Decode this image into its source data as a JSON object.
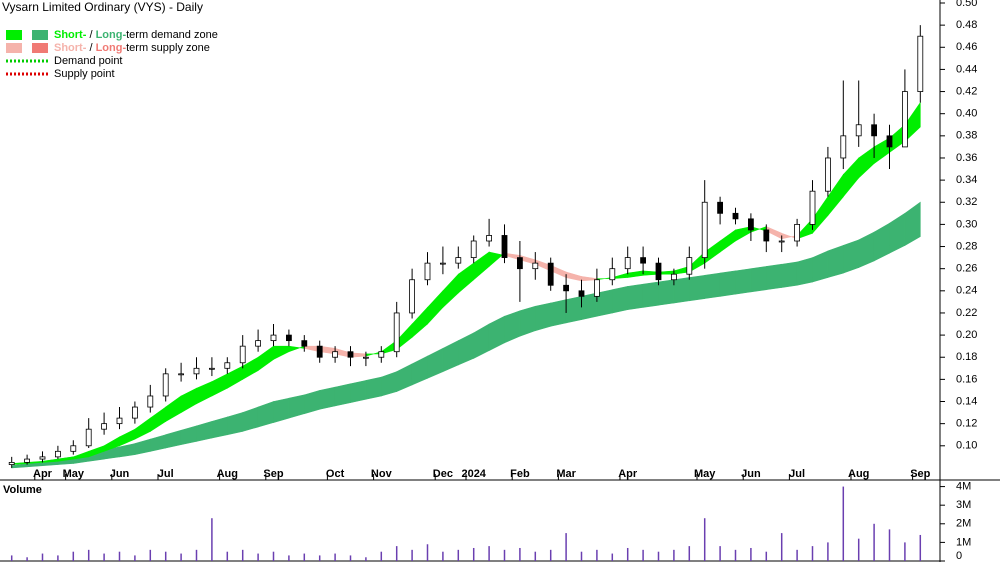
{
  "chart_data": {
    "type": "ohlc",
    "title": "Vysarn Limited Ordinary (VYS) - Daily",
    "legend": [
      {
        "parts": [
          "Short-",
          " / ",
          "Long-",
          "term demand zone"
        ]
      },
      {
        "parts": [
          "Short-",
          " / ",
          "Long-",
          "term supply zone"
        ]
      },
      {
        "name": "Demand point"
      },
      {
        "name": "Supply point"
      }
    ],
    "colors": {
      "short_demand": "#00ee00",
      "long_demand": "#3cb371",
      "short_supply": "#f5b3ab",
      "long_supply": "#f07a74",
      "demand_point": "#00cc00",
      "supply_point": "#dd0000",
      "volume": "#6a3fb0",
      "volume_label": "#5a2a90"
    },
    "categories": [
      null,
      null,
      "Apr",
      null,
      "May",
      null,
      null,
      "Jun",
      null,
      null,
      "Jul",
      null,
      null,
      null,
      "Aug",
      null,
      null,
      "Sep",
      null,
      null,
      null,
      "Oct",
      null,
      null,
      "Nov",
      null,
      null,
      null,
      "Dec",
      null,
      "2024",
      null,
      null,
      "Feb",
      null,
      null,
      "Mar",
      null,
      null,
      null,
      "Apr",
      null,
      null,
      null,
      null,
      "May",
      null,
      null,
      "Jun",
      null,
      null,
      "Jul",
      null,
      null,
      null,
      "Aug",
      null,
      null,
      null,
      "Sep"
    ],
    "open": [
      0.083,
      0.085,
      0.088,
      0.09,
      0.095,
      0.1,
      0.115,
      0.12,
      0.125,
      0.135,
      0.145,
      0.165,
      0.165,
      0.17,
      0.17,
      0.175,
      0.19,
      0.195,
      0.2,
      0.195,
      0.19,
      0.18,
      0.185,
      0.18,
      0.18,
      0.185,
      0.22,
      0.25,
      0.265,
      0.265,
      0.27,
      0.285,
      0.29,
      0.27,
      0.26,
      0.265,
      0.245,
      0.24,
      0.235,
      0.25,
      0.26,
      0.27,
      0.265,
      0.25,
      0.255,
      0.27,
      0.32,
      0.31,
      0.305,
      0.295,
      0.285,
      0.285,
      0.3,
      0.33,
      0.36,
      0.38,
      0.39,
      0.38,
      0.37,
      0.42
    ],
    "high": [
      0.09,
      0.092,
      0.095,
      0.1,
      0.105,
      0.125,
      0.13,
      0.135,
      0.14,
      0.155,
      0.17,
      0.175,
      0.18,
      0.18,
      0.18,
      0.2,
      0.205,
      0.21,
      0.205,
      0.2,
      0.195,
      0.19,
      0.19,
      0.185,
      0.19,
      0.23,
      0.26,
      0.275,
      0.28,
      0.28,
      0.29,
      0.305,
      0.3,
      0.285,
      0.275,
      0.27,
      0.255,
      0.25,
      0.26,
      0.27,
      0.28,
      0.28,
      0.27,
      0.26,
      0.28,
      0.34,
      0.325,
      0.315,
      0.31,
      0.3,
      0.29,
      0.305,
      0.34,
      0.37,
      0.43,
      0.43,
      0.4,
      0.39,
      0.44,
      0.48
    ],
    "low": [
      0.08,
      0.083,
      0.085,
      0.088,
      0.092,
      0.098,
      0.11,
      0.115,
      0.12,
      0.13,
      0.14,
      0.158,
      0.16,
      0.163,
      0.165,
      0.17,
      0.185,
      0.19,
      0.19,
      0.185,
      0.175,
      0.175,
      0.172,
      0.172,
      0.175,
      0.18,
      0.215,
      0.245,
      0.255,
      0.26,
      0.265,
      0.28,
      0.265,
      0.23,
      0.25,
      0.24,
      0.22,
      0.225,
      0.23,
      0.245,
      0.255,
      0.255,
      0.245,
      0.245,
      0.25,
      0.26,
      0.3,
      0.3,
      0.285,
      0.275,
      0.275,
      0.28,
      0.295,
      0.325,
      0.35,
      0.37,
      0.36,
      0.35,
      0.37,
      0.41
    ],
    "close": [
      0.085,
      0.088,
      0.09,
      0.095,
      0.1,
      0.115,
      0.12,
      0.125,
      0.135,
      0.145,
      0.165,
      0.165,
      0.17,
      0.17,
      0.175,
      0.19,
      0.195,
      0.2,
      0.195,
      0.19,
      0.18,
      0.185,
      0.18,
      0.18,
      0.185,
      0.22,
      0.25,
      0.265,
      0.265,
      0.27,
      0.285,
      0.29,
      0.27,
      0.26,
      0.265,
      0.245,
      0.24,
      0.235,
      0.25,
      0.26,
      0.27,
      0.265,
      0.25,
      0.255,
      0.27,
      0.32,
      0.31,
      0.305,
      0.295,
      0.285,
      0.285,
      0.3,
      0.33,
      0.36,
      0.38,
      0.39,
      0.38,
      0.37,
      0.42,
      0.47
    ],
    "short_zone": {
      "fast": [
        0.084,
        0.085,
        0.086,
        0.088,
        0.09,
        0.095,
        0.1,
        0.108,
        0.115,
        0.125,
        0.135,
        0.145,
        0.152,
        0.158,
        0.165,
        0.172,
        0.18,
        0.19,
        0.19,
        0.188,
        0.185,
        0.183,
        0.18,
        0.181,
        0.185,
        0.195,
        0.21,
        0.225,
        0.24,
        0.255,
        0.265,
        0.275,
        0.272,
        0.268,
        0.264,
        0.258,
        0.252,
        0.249,
        0.25,
        0.252,
        0.256,
        0.258,
        0.257,
        0.258,
        0.262,
        0.275,
        0.285,
        0.295,
        0.298,
        0.294,
        0.287,
        0.29,
        0.305,
        0.325,
        0.345,
        0.36,
        0.37,
        0.378,
        0.39,
        0.41
      ],
      "slow": [
        0.083,
        0.084,
        0.085,
        0.086,
        0.088,
        0.09,
        0.095,
        0.1,
        0.106,
        0.113,
        0.122,
        0.13,
        0.138,
        0.145,
        0.152,
        0.16,
        0.168,
        0.178,
        0.185,
        0.19,
        0.19,
        0.188,
        0.184,
        0.183,
        0.183,
        0.187,
        0.198,
        0.21,
        0.225,
        0.238,
        0.25,
        0.262,
        0.274,
        0.272,
        0.268,
        0.263,
        0.257,
        0.253,
        0.251,
        0.251,
        0.252,
        0.254,
        0.255,
        0.255,
        0.257,
        0.265,
        0.275,
        0.285,
        0.293,
        0.298,
        0.292,
        0.287,
        0.292,
        0.308,
        0.325,
        0.342,
        0.355,
        0.365,
        0.375,
        0.388
      ]
    },
    "long_zone": {
      "fast": [
        0.082,
        0.084,
        0.086,
        0.088,
        0.09,
        0.093,
        0.096,
        0.099,
        0.102,
        0.106,
        0.11,
        0.114,
        0.118,
        0.122,
        0.126,
        0.13,
        0.135,
        0.14,
        0.143,
        0.146,
        0.15,
        0.153,
        0.156,
        0.159,
        0.162,
        0.167,
        0.174,
        0.181,
        0.188,
        0.195,
        0.202,
        0.21,
        0.217,
        0.222,
        0.226,
        0.229,
        0.232,
        0.235,
        0.238,
        0.241,
        0.244,
        0.246,
        0.248,
        0.25,
        0.252,
        0.254,
        0.256,
        0.258,
        0.26,
        0.262,
        0.264,
        0.266,
        0.27,
        0.276,
        0.281,
        0.286,
        0.293,
        0.301,
        0.31,
        0.32
      ],
      "slow": [
        0.08,
        0.081,
        0.082,
        0.083,
        0.084,
        0.086,
        0.088,
        0.09,
        0.092,
        0.095,
        0.098,
        0.101,
        0.104,
        0.107,
        0.11,
        0.113,
        0.117,
        0.121,
        0.125,
        0.129,
        0.133,
        0.136,
        0.139,
        0.142,
        0.145,
        0.149,
        0.155,
        0.161,
        0.167,
        0.173,
        0.179,
        0.186,
        0.193,
        0.199,
        0.204,
        0.208,
        0.211,
        0.214,
        0.217,
        0.22,
        0.223,
        0.225,
        0.227,
        0.229,
        0.231,
        0.233,
        0.235,
        0.237,
        0.239,
        0.241,
        0.243,
        0.245,
        0.248,
        0.252,
        0.256,
        0.261,
        0.267,
        0.274,
        0.281,
        0.289
      ]
    },
    "ylim": [
      0.07,
      0.5
    ],
    "yticks": [
      {
        "value": 0.1,
        "label": "0.10"
      },
      {
        "value": 0.12,
        "label": "0.12"
      },
      {
        "value": 0.14,
        "label": "0.14"
      },
      {
        "value": 0.16,
        "label": "0.16"
      },
      {
        "value": 0.18,
        "label": "0.18"
      },
      {
        "value": 0.2,
        "label": "0.20"
      },
      {
        "value": 0.22,
        "label": "0.22"
      },
      {
        "value": 0.24,
        "label": "0.24"
      },
      {
        "value": 0.26,
        "label": "0.26"
      },
      {
        "value": 0.28,
        "label": "0.28"
      },
      {
        "value": 0.3,
        "label": "0.30"
      },
      {
        "value": 0.32,
        "label": "0.32"
      },
      {
        "value": 0.34,
        "label": "0.34"
      },
      {
        "value": 0.36,
        "label": "0.36"
      },
      {
        "value": 0.38,
        "label": "0.38"
      },
      {
        "value": 0.4,
        "label": "0.40"
      },
      {
        "value": 0.42,
        "label": "0.42"
      },
      {
        "value": 0.44,
        "label": "0.44"
      },
      {
        "value": 0.46,
        "label": "0.46"
      },
      {
        "value": 0.48,
        "label": "0.48"
      },
      {
        "value": 0.5,
        "label": "0.50"
      }
    ],
    "volume": {
      "label": "Volume",
      "values": [
        0.3,
        0.2,
        0.4,
        0.3,
        0.5,
        0.6,
        0.4,
        0.5,
        0.3,
        0.6,
        0.5,
        0.4,
        0.6,
        2.3,
        0.5,
        0.6,
        0.4,
        0.5,
        0.3,
        0.4,
        0.3,
        0.4,
        0.3,
        0.2,
        0.5,
        0.8,
        0.6,
        0.9,
        0.5,
        0.6,
        0.7,
        0.8,
        0.6,
        0.7,
        0.5,
        0.6,
        1.5,
        0.5,
        0.6,
        0.4,
        0.7,
        0.6,
        0.5,
        0.6,
        0.8,
        2.3,
        0.8,
        0.6,
        0.7,
        0.5,
        1.5,
        0.6,
        0.8,
        1.0,
        4.0,
        1.2,
        2.0,
        1.7,
        1.0,
        1.4
      ],
      "ylim": [
        0,
        4.3
      ],
      "yticks": [
        0,
        {
          "value": 1,
          "label": "1M"
        },
        {
          "value": 2,
          "label": "2M"
        },
        {
          "value": 3,
          "label": "3M"
        },
        {
          "value": 4,
          "label": "4M"
        }
      ]
    }
  }
}
